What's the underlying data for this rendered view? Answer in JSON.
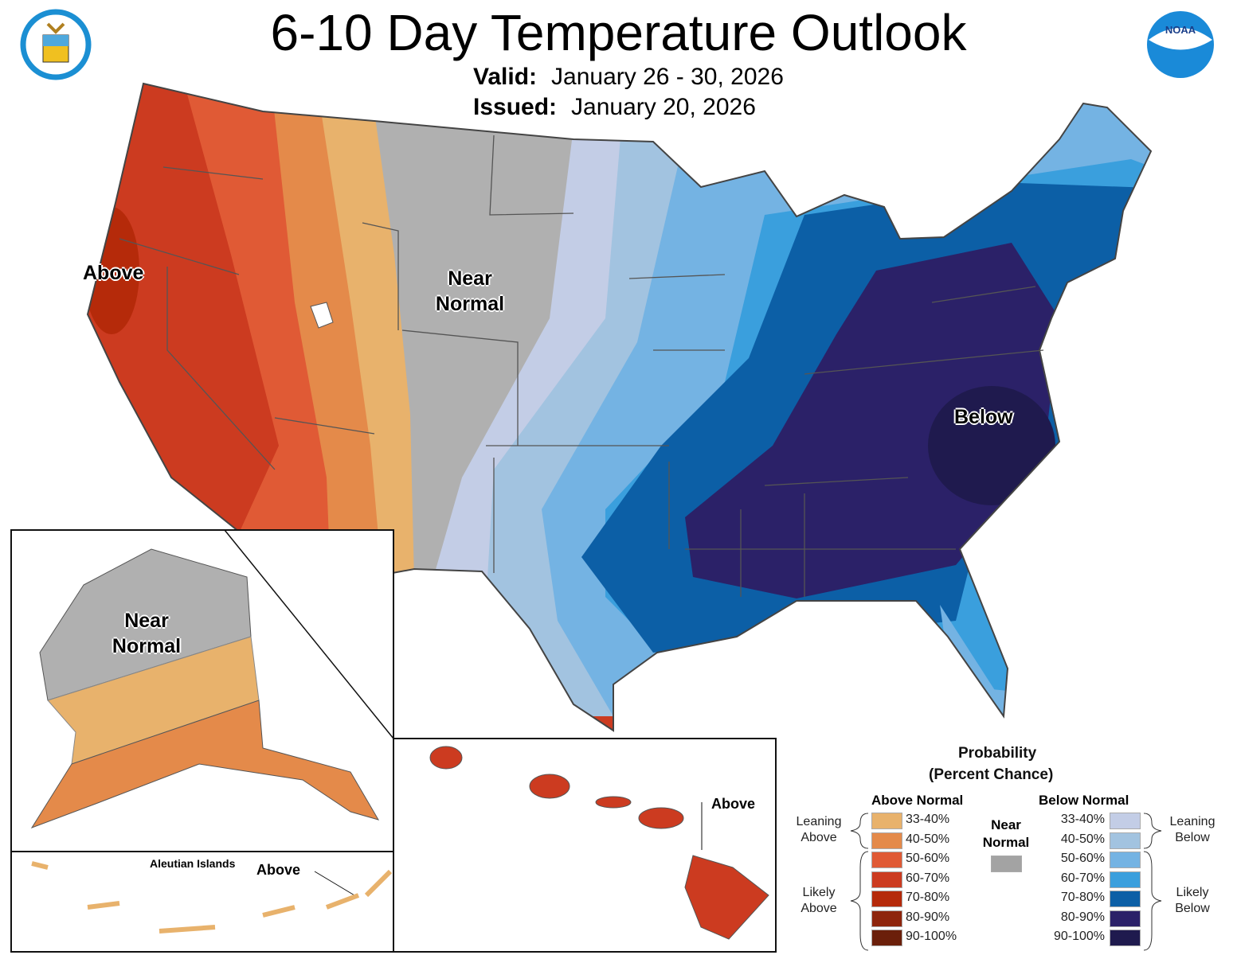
{
  "header": {
    "title": "6-10 Day Temperature Outlook",
    "valid_label": "Valid:",
    "valid_value": "January 26 - 30, 2026",
    "issued_label": "Issued:",
    "issued_value": "January 20, 2026"
  },
  "logos": {
    "left": "DEPARTMENT OF COMMERCE UNITED STATES OF AMERICA",
    "right": "NOAA"
  },
  "map_labels": {
    "above_west": "Above",
    "near_normal_1": "Near",
    "near_normal_2": "Normal",
    "below_east": "Below",
    "ak_near_1": "Near",
    "ak_near_2": "Normal",
    "aleutian_title": "Aleutian Islands",
    "aleutian_above": "Above",
    "hawaii_above": "Above"
  },
  "legend": {
    "title_1": "Probability",
    "title_2": "(Percent Chance)",
    "above_header": "Above Normal",
    "below_header": "Below Normal",
    "near_1": "Near",
    "near_2": "Normal",
    "near_color": "#a3a3a3",
    "leaning_above_1": "Leaning",
    "leaning_above_2": "Above",
    "likely_above_1": "Likely",
    "likely_above_2": "Above",
    "leaning_below_1": "Leaning",
    "leaning_below_2": "Below",
    "likely_below_1": "Likely",
    "likely_below_2": "Below",
    "above": [
      {
        "label": "33-40%",
        "color": "#e8b26c"
      },
      {
        "label": "40-50%",
        "color": "#e48a4a"
      },
      {
        "label": "50-60%",
        "color": "#e05a35"
      },
      {
        "label": "60-70%",
        "color": "#cc3b20"
      },
      {
        "label": "70-80%",
        "color": "#b52a0a"
      },
      {
        "label": "80-90%",
        "color": "#8e250c"
      },
      {
        "label": "90-100%",
        "color": "#6b1f0a"
      }
    ],
    "below": [
      {
        "label": "33-40%",
        "color": "#c3cde6"
      },
      {
        "label": "40-50%",
        "color": "#a2c3e0"
      },
      {
        "label": "50-60%",
        "color": "#74b3e3"
      },
      {
        "label": "60-70%",
        "color": "#3a9fdd"
      },
      {
        "label": "70-80%",
        "color": "#0c5fa6"
      },
      {
        "label": "80-90%",
        "color": "#2b2168"
      },
      {
        "label": "90-100%",
        "color": "#1f1a4e"
      }
    ]
  }
}
